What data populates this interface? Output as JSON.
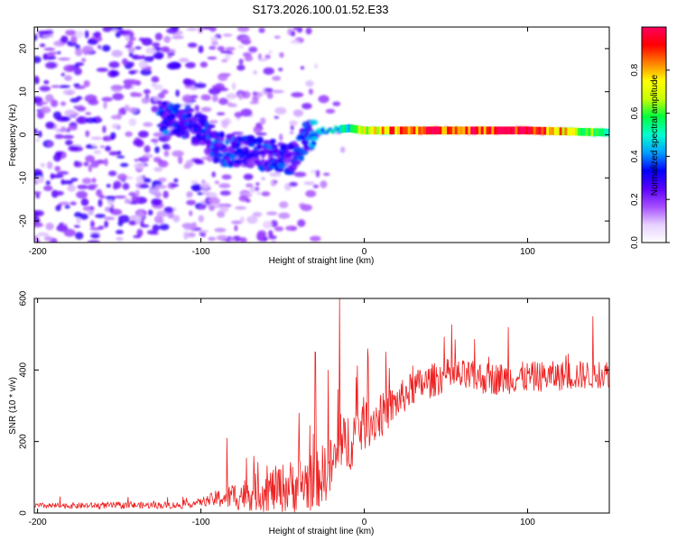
{
  "page": {
    "title": "S173.2026.100.01.52.E33"
  },
  "chart_data": [
    {
      "id": "spectrogram",
      "type": "heatmap",
      "title": "S173.2026.100.01.52.E33",
      "xlabel": "Height of straight line (km)",
      "ylabel": "Frequency (Hz)",
      "xlim": [
        -202,
        150
      ],
      "ylim": [
        -25,
        25
      ],
      "xticks": [
        -200,
        -100,
        0,
        100
      ],
      "xtick_labels": [
        "-200",
        "-100",
        "0",
        "100"
      ],
      "yticks": [
        -20,
        -10,
        0,
        10,
        20
      ],
      "ytick_labels": [
        "-20",
        "-10",
        "0",
        "10",
        "20"
      ],
      "colorbar": {
        "label": "Normalized spectral amplitude",
        "range": [
          0,
          1
        ],
        "ticks": [
          0,
          0.2,
          0.4,
          0.6,
          0.8
        ],
        "tick_labels": [
          "0.0",
          "0.2",
          "0.4",
          "0.6",
          "0.8"
        ],
        "colormap": [
          "#ffffff",
          "#e6d0ff",
          "#a64dff",
          "#5a00ff",
          "#0000ff",
          "#00a0ff",
          "#00ffd0",
          "#00ff40",
          "#c8ff00",
          "#ffff00",
          "#ff8000",
          "#ff0000",
          "#ff0060"
        ]
      },
      "ridge": [
        {
          "x": -120,
          "f": 4,
          "a": 0.35
        },
        {
          "x": -100,
          "f": 2,
          "a": 0.3
        },
        {
          "x": -90,
          "f": -3,
          "a": 0.35
        },
        {
          "x": -80,
          "f": -4,
          "a": 0.35
        },
        {
          "x": -70,
          "f": -4,
          "a": 0.3
        },
        {
          "x": -55,
          "f": -5,
          "a": 0.35
        },
        {
          "x": -45,
          "f": -6,
          "a": 0.3
        },
        {
          "x": -35,
          "f": 0,
          "a": 0.35
        },
        {
          "x": -25,
          "f": 1,
          "a": 0.55
        },
        {
          "x": -10,
          "f": 1.5,
          "a": 0.5
        },
        {
          "x": 0,
          "f": 1,
          "a": 0.7
        },
        {
          "x": 20,
          "f": 1,
          "a": 0.85
        },
        {
          "x": 60,
          "f": 1,
          "a": 0.9
        },
        {
          "x": 100,
          "f": 1,
          "a": 0.95
        },
        {
          "x": 150,
          "f": 0.5,
          "a": 0.5
        }
      ]
    },
    {
      "id": "snr",
      "type": "line",
      "xlabel": "Height of straight line (km)",
      "ylabel": "SNR (10 * v/v)",
      "xlim": [
        -202,
        150
      ],
      "ylim": [
        0,
        600
      ],
      "xticks": [
        -200,
        -100,
        0,
        100
      ],
      "xtick_labels": [
        "-200",
        "-100",
        "0",
        "100"
      ],
      "yticks": [
        0,
        200,
        400,
        600
      ],
      "ytick_labels": [
        "0",
        "200",
        "400",
        "600"
      ],
      "color": "#ee2222",
      "envelope": [
        {
          "x": -202,
          "y": 20
        },
        {
          "x": -110,
          "y": 22
        },
        {
          "x": -90,
          "y": 40
        },
        {
          "x": -70,
          "y": 55
        },
        {
          "x": -50,
          "y": 70
        },
        {
          "x": -30,
          "y": 90
        },
        {
          "x": -20,
          "y": 130
        },
        {
          "x": -10,
          "y": 200
        },
        {
          "x": 0,
          "y": 250
        },
        {
          "x": 10,
          "y": 270
        },
        {
          "x": 20,
          "y": 310
        },
        {
          "x": 30,
          "y": 350
        },
        {
          "x": 50,
          "y": 385
        },
        {
          "x": 80,
          "y": 375
        },
        {
          "x": 100,
          "y": 380
        },
        {
          "x": 130,
          "y": 385
        },
        {
          "x": 150,
          "y": 390
        }
      ],
      "noise_spread": [
        {
          "x": -202,
          "y": 8
        },
        {
          "x": -100,
          "y": 10
        },
        {
          "x": -80,
          "y": 40
        },
        {
          "x": -40,
          "y": 80
        },
        {
          "x": -10,
          "y": 90
        },
        {
          "x": 20,
          "y": 50
        },
        {
          "x": 150,
          "y": 40
        }
      ],
      "spikes": [
        {
          "x": -84,
          "y": 210
        },
        {
          "x": -40,
          "y": 280
        },
        {
          "x": -30,
          "y": 450
        },
        {
          "x": -22,
          "y": 400
        },
        {
          "x": -15,
          "y": 600
        },
        {
          "x": -5,
          "y": 380
        },
        {
          "x": 2,
          "y": 460
        },
        {
          "x": 88,
          "y": 520
        },
        {
          "x": 140,
          "y": 550
        }
      ]
    }
  ]
}
